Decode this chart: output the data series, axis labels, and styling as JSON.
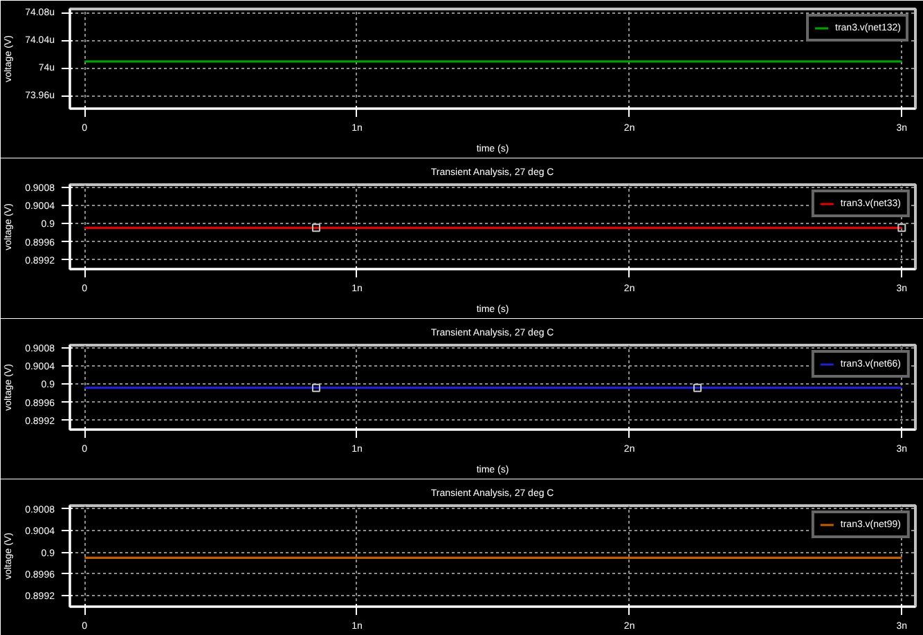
{
  "chart_data": [
    {
      "type": "line",
      "ylabel": "voltage (V)",
      "xlabel": "time (s)",
      "legend": "top right",
      "grid": true,
      "line_style": "solid",
      "marker": "none",
      "xlim": [
        -0.054,
        3.05
      ],
      "xticks": [
        0,
        {
          "value": 1,
          "label": "1n"
        },
        {
          "value": 2,
          "label": "2n"
        },
        {
          "value": 3,
          "label": "3n"
        }
      ],
      "ylim": [
        73.942,
        74.0856
      ],
      "yticks": [
        {
          "value": 73.96,
          "label": "73.96u"
        },
        {
          "value": 74,
          "label": "74u"
        },
        {
          "value": 74.04,
          "label": "74.04u"
        },
        {
          "value": 74.08,
          "label": "74.08u"
        }
      ],
      "series": [
        {
          "name": "tran3.v(net132)",
          "color": "#00a000",
          "x": [
            0,
            3
          ],
          "values": [
            74.01,
            74.01
          ]
        }
      ]
    },
    {
      "type": "line",
      "title": "Transient Analysis, 27 deg C",
      "ylabel": "voltage (V)",
      "xlabel": "time (s)",
      "legend": "top right",
      "grid": true,
      "line_style": "solid",
      "marker": "none",
      "xlim": [
        -0.054,
        3.05
      ],
      "xticks": [
        0,
        {
          "value": 1,
          "label": "1n"
        },
        {
          "value": 2,
          "label": "2n"
        },
        {
          "value": 3,
          "label": "3n"
        }
      ],
      "ylim": [
        0.899,
        0.90086
      ],
      "yticks": [
        0.8992,
        0.8996,
        {
          "value": 0.9,
          "label": "0.9"
        },
        0.9004,
        0.9008
      ],
      "series": [
        {
          "name": "tran3.v(net33)",
          "color": "#e00000",
          "x": [
            0,
            3
          ],
          "values": [
            0.89991,
            0.89991
          ]
        },
        {
          "type": "scatter",
          "marker": "square",
          "color": "#c8c8c8",
          "x": [
            0.85,
            3
          ],
          "values": [
            0.89991,
            0.89991
          ]
        }
      ]
    },
    {
      "type": "line",
      "title": "Transient Analysis, 27 deg C",
      "ylabel": "voltage (V)",
      "xlabel": "time (s)",
      "legend": "top right",
      "grid": true,
      "line_style": "solid",
      "marker": "none",
      "xlim": [
        -0.054,
        3.05
      ],
      "xticks": [
        0,
        {
          "value": 1,
          "label": "1n"
        },
        {
          "value": 2,
          "label": "2n"
        },
        {
          "value": 3,
          "label": "3n"
        }
      ],
      "ylim": [
        0.899,
        0.90086
      ],
      "yticks": [
        0.8992,
        0.8996,
        {
          "value": 0.9,
          "label": "0.9"
        },
        0.9004,
        0.9008
      ],
      "series": [
        {
          "name": "tran3.v(net66)",
          "color": "#2020d0",
          "x": [
            0,
            3
          ],
          "values": [
            0.89992,
            0.89992
          ]
        },
        {
          "type": "scatter",
          "marker": "square",
          "color": "#c8c8c8",
          "x": [
            0.85,
            2.25
          ],
          "values": [
            0.89992,
            0.89992
          ]
        }
      ]
    },
    {
      "type": "line",
      "title": "Transient Analysis, 27 deg C",
      "ylabel": "voltage (V)",
      "legend": "top right",
      "grid": true,
      "line_style": "solid",
      "marker": "none",
      "xlim": [
        -0.054,
        3.05
      ],
      "xticks": [
        0,
        {
          "value": 1,
          "label": "1n"
        },
        {
          "value": 2,
          "label": "2n"
        },
        {
          "value": 3,
          "label": "3n"
        }
      ],
      "ylim": [
        0.899,
        0.90086
      ],
      "yticks": [
        0.8992,
        0.8996,
        {
          "value": 0.9,
          "label": "0.9"
        },
        0.9004,
        0.9008
      ],
      "series": [
        {
          "name": "tran3.v(net99)",
          "color": "#c06000",
          "x": [
            0,
            3
          ],
          "values": [
            0.8999,
            0.8999
          ]
        }
      ]
    }
  ]
}
